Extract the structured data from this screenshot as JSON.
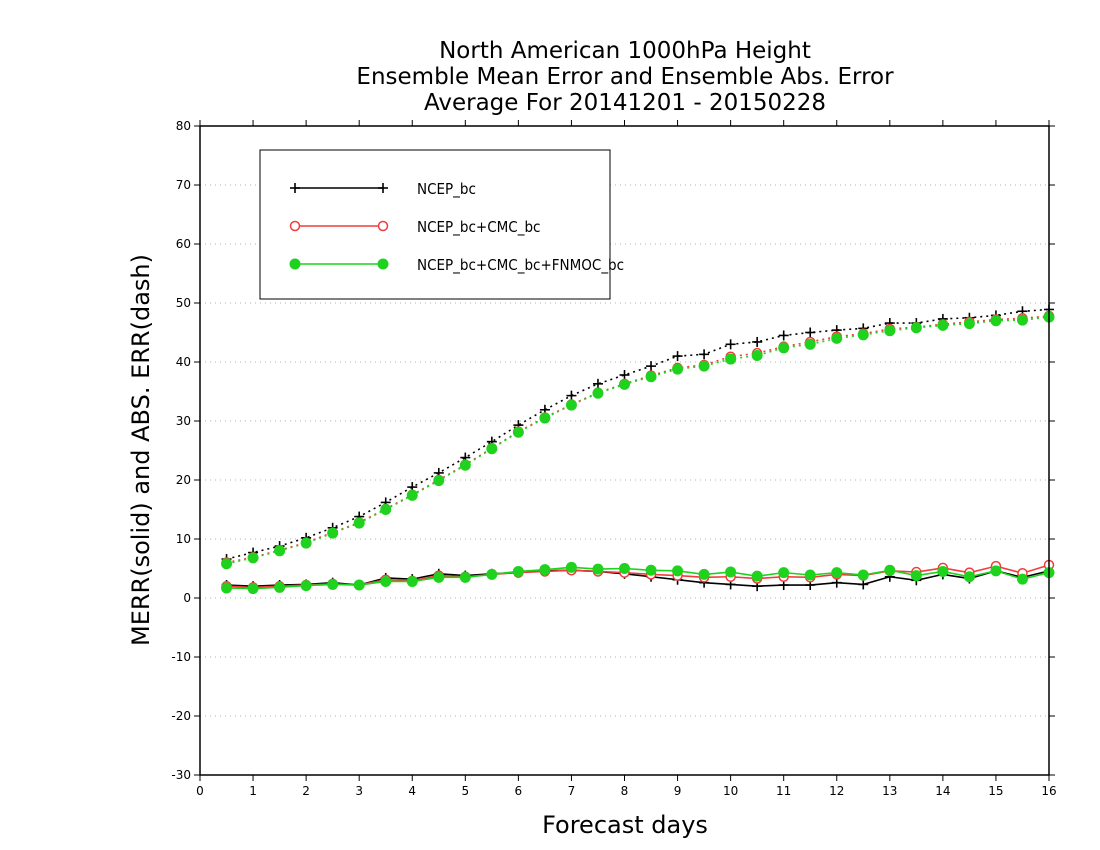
{
  "chart_data": {
    "type": "line",
    "title": [
      "North American 1000hPa Height",
      "Ensemble Mean Error and Ensemble Abs. Error",
      "Average For 20141201 - 20150228"
    ],
    "xlabel": "Forecast days",
    "ylabel": "MERR(solid) and ABS. ERR(dash)",
    "xlim": [
      0,
      16
    ],
    "ylim": [
      -30,
      80
    ],
    "xticks": [
      0,
      1,
      2,
      3,
      4,
      5,
      6,
      7,
      8,
      9,
      10,
      11,
      12,
      13,
      14,
      15,
      16
    ],
    "yticks": [
      -30,
      -20,
      -10,
      0,
      10,
      20,
      30,
      40,
      50,
      60,
      70,
      80
    ],
    "grid": "horizontal dotted",
    "legend_position": "top-left",
    "x": [
      0.5,
      1,
      1.5,
      2,
      2.5,
      3,
      3.5,
      4,
      4.5,
      5,
      5.5,
      6,
      6.5,
      7,
      7.5,
      8,
      8.5,
      9,
      9.5,
      10,
      10.5,
      11,
      11.5,
      12,
      12.5,
      13,
      13.5,
      14,
      14.5,
      15,
      15.5,
      16
    ],
    "series": [
      {
        "name": "NCEP_bc",
        "color": "#000000",
        "marker": "plus",
        "merr": [
          2.2,
          2.0,
          2.2,
          2.3,
          2.6,
          2.2,
          3.4,
          3.2,
          4.1,
          3.8,
          4.1,
          4.3,
          4.6,
          4.7,
          4.5,
          4.1,
          3.6,
          3.1,
          2.6,
          2.3,
          2.0,
          2.2,
          2.2,
          2.6,
          2.3,
          3.6,
          3.0,
          4.0,
          3.3,
          4.6,
          3.5,
          4.6
        ],
        "abs_err": [
          6.6,
          7.7,
          8.8,
          10.2,
          11.9,
          13.8,
          16.2,
          18.8,
          21.2,
          23.8,
          26.5,
          29.3,
          31.9,
          34.3,
          36.3,
          37.8,
          39.3,
          41.0,
          41.3,
          43.0,
          43.4,
          44.5,
          45.0,
          45.4,
          45.7,
          46.6,
          46.6,
          47.3,
          47.5,
          47.9,
          48.6,
          48.9
        ]
      },
      {
        "name": "NCEP_bc+CMC_bc",
        "color": "#f03c3c",
        "marker": "open-circle",
        "merr": [
          2.0,
          1.8,
          2.0,
          2.2,
          2.4,
          2.2,
          3.1,
          2.9,
          3.8,
          3.6,
          4.0,
          4.3,
          4.5,
          4.7,
          4.5,
          4.3,
          4.0,
          3.8,
          3.5,
          3.6,
          3.3,
          3.6,
          3.5,
          4.0,
          3.8,
          4.6,
          4.4,
          5.1,
          4.3,
          5.4,
          4.2,
          5.6
        ],
        "abs_err": [
          6.0,
          6.9,
          8.1,
          9.4,
          11.1,
          12.8,
          15.1,
          17.5,
          20.0,
          22.6,
          25.4,
          28.2,
          30.6,
          32.8,
          34.8,
          36.3,
          37.7,
          39.0,
          39.5,
          40.9,
          41.5,
          42.6,
          43.4,
          44.3,
          44.8,
          45.6,
          45.9,
          46.4,
          46.8,
          47.2,
          47.4,
          47.8
        ]
      },
      {
        "name": "NCEP_bc+CMC_bc+FNMOC_bc",
        "color": "#1ed21e",
        "marker": "filled-circle",
        "merr": [
          1.7,
          1.6,
          1.8,
          2.1,
          2.3,
          2.2,
          2.8,
          2.8,
          3.5,
          3.5,
          4.0,
          4.5,
          4.8,
          5.2,
          4.9,
          5.0,
          4.7,
          4.6,
          4.0,
          4.4,
          3.7,
          4.3,
          3.9,
          4.3,
          3.9,
          4.7,
          3.8,
          4.5,
          3.6,
          4.6,
          3.2,
          4.3
        ],
        "abs_err": [
          5.8,
          6.8,
          8.0,
          9.3,
          11.0,
          12.7,
          15.0,
          17.4,
          19.9,
          22.5,
          25.3,
          28.1,
          30.5,
          32.7,
          34.7,
          36.2,
          37.5,
          38.8,
          39.3,
          40.5,
          41.1,
          42.4,
          43.0,
          44.0,
          44.6,
          45.3,
          45.8,
          46.2,
          46.5,
          47.0,
          47.1,
          47.6
        ]
      }
    ]
  }
}
